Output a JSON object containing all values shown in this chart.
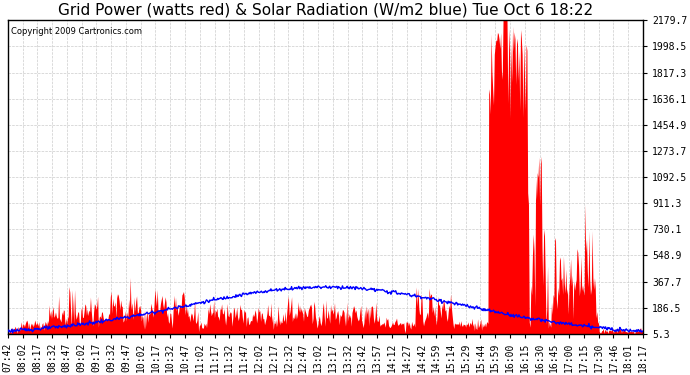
{
  "title": "Grid Power (watts red) & Solar Radiation (W/m2 blue) Tue Oct 6 18:22",
  "copyright_text": "Copyright 2009 Cartronics.com",
  "yticks": [
    5.3,
    186.5,
    367.7,
    548.9,
    730.1,
    911.3,
    1092.5,
    1273.7,
    1454.9,
    1636.1,
    1817.3,
    1998.5,
    2179.7
  ],
  "ymin": 5.3,
  "ymax": 2179.7,
  "xtick_labels": [
    "07:42",
    "08:02",
    "08:17",
    "08:32",
    "08:47",
    "09:02",
    "09:17",
    "09:32",
    "09:47",
    "10:02",
    "10:17",
    "10:32",
    "10:47",
    "11:02",
    "11:17",
    "11:32",
    "11:47",
    "12:02",
    "12:17",
    "12:32",
    "12:47",
    "13:02",
    "13:17",
    "13:32",
    "13:42",
    "13:57",
    "14:12",
    "14:27",
    "14:42",
    "14:59",
    "15:14",
    "15:29",
    "15:44",
    "15:59",
    "16:00",
    "16:15",
    "16:30",
    "16:45",
    "17:00",
    "17:15",
    "17:30",
    "17:46",
    "18:01",
    "18:17"
  ],
  "bg_color": "#ffffff",
  "plot_bg_color": "#ffffff",
  "grid_color": "#cccccc",
  "red_color": "#ff0000",
  "blue_color": "#0000ff",
  "title_fontsize": 11,
  "tick_fontsize": 7
}
